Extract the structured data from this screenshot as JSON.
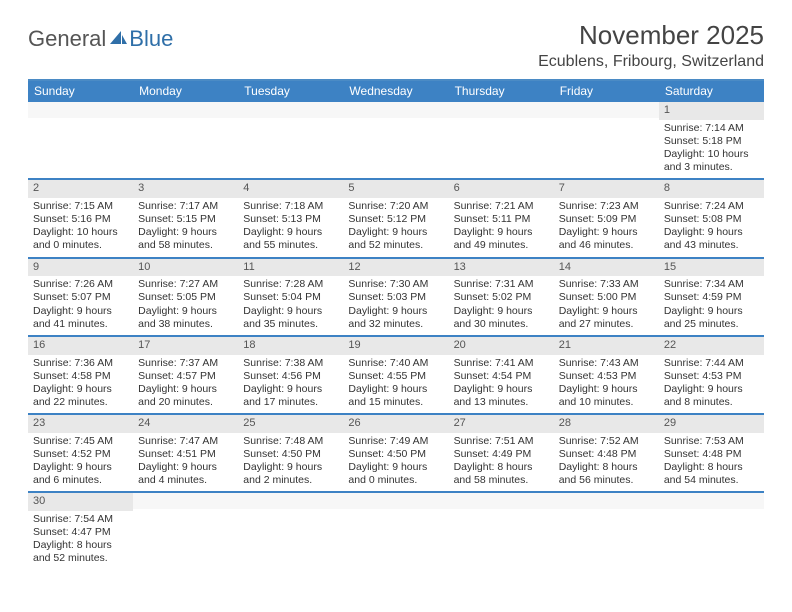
{
  "logo": {
    "text1": "General",
    "text2": "Blue"
  },
  "title": "November 2025",
  "location": "Ecublens, Fribourg, Switzerland",
  "header_bg": "#3d82c4",
  "rule_color": "#3d82c4",
  "daynum_bg": "#e8e8e8",
  "weekdays": [
    "Sunday",
    "Monday",
    "Tuesday",
    "Wednesday",
    "Thursday",
    "Friday",
    "Saturday"
  ],
  "weeks": [
    [
      {
        "n": "",
        "lines": []
      },
      {
        "n": "",
        "lines": []
      },
      {
        "n": "",
        "lines": []
      },
      {
        "n": "",
        "lines": []
      },
      {
        "n": "",
        "lines": []
      },
      {
        "n": "",
        "lines": []
      },
      {
        "n": "1",
        "lines": [
          "Sunrise: 7:14 AM",
          "Sunset: 5:18 PM",
          "Daylight: 10 hours and 3 minutes."
        ]
      }
    ],
    [
      {
        "n": "2",
        "lines": [
          "Sunrise: 7:15 AM",
          "Sunset: 5:16 PM",
          "Daylight: 10 hours and 0 minutes."
        ]
      },
      {
        "n": "3",
        "lines": [
          "Sunrise: 7:17 AM",
          "Sunset: 5:15 PM",
          "Daylight: 9 hours and 58 minutes."
        ]
      },
      {
        "n": "4",
        "lines": [
          "Sunrise: 7:18 AM",
          "Sunset: 5:13 PM",
          "Daylight: 9 hours and 55 minutes."
        ]
      },
      {
        "n": "5",
        "lines": [
          "Sunrise: 7:20 AM",
          "Sunset: 5:12 PM",
          "Daylight: 9 hours and 52 minutes."
        ]
      },
      {
        "n": "6",
        "lines": [
          "Sunrise: 7:21 AM",
          "Sunset: 5:11 PM",
          "Daylight: 9 hours and 49 minutes."
        ]
      },
      {
        "n": "7",
        "lines": [
          "Sunrise: 7:23 AM",
          "Sunset: 5:09 PM",
          "Daylight: 9 hours and 46 minutes."
        ]
      },
      {
        "n": "8",
        "lines": [
          "Sunrise: 7:24 AM",
          "Sunset: 5:08 PM",
          "Daylight: 9 hours and 43 minutes."
        ]
      }
    ],
    [
      {
        "n": "9",
        "lines": [
          "Sunrise: 7:26 AM",
          "Sunset: 5:07 PM",
          "Daylight: 9 hours and 41 minutes."
        ]
      },
      {
        "n": "10",
        "lines": [
          "Sunrise: 7:27 AM",
          "Sunset: 5:05 PM",
          "Daylight: 9 hours and 38 minutes."
        ]
      },
      {
        "n": "11",
        "lines": [
          "Sunrise: 7:28 AM",
          "Sunset: 5:04 PM",
          "Daylight: 9 hours and 35 minutes."
        ]
      },
      {
        "n": "12",
        "lines": [
          "Sunrise: 7:30 AM",
          "Sunset: 5:03 PM",
          "Daylight: 9 hours and 32 minutes."
        ]
      },
      {
        "n": "13",
        "lines": [
          "Sunrise: 7:31 AM",
          "Sunset: 5:02 PM",
          "Daylight: 9 hours and 30 minutes."
        ]
      },
      {
        "n": "14",
        "lines": [
          "Sunrise: 7:33 AM",
          "Sunset: 5:00 PM",
          "Daylight: 9 hours and 27 minutes."
        ]
      },
      {
        "n": "15",
        "lines": [
          "Sunrise: 7:34 AM",
          "Sunset: 4:59 PM",
          "Daylight: 9 hours and 25 minutes."
        ]
      }
    ],
    [
      {
        "n": "16",
        "lines": [
          "Sunrise: 7:36 AM",
          "Sunset: 4:58 PM",
          "Daylight: 9 hours and 22 minutes."
        ]
      },
      {
        "n": "17",
        "lines": [
          "Sunrise: 7:37 AM",
          "Sunset: 4:57 PM",
          "Daylight: 9 hours and 20 minutes."
        ]
      },
      {
        "n": "18",
        "lines": [
          "Sunrise: 7:38 AM",
          "Sunset: 4:56 PM",
          "Daylight: 9 hours and 17 minutes."
        ]
      },
      {
        "n": "19",
        "lines": [
          "Sunrise: 7:40 AM",
          "Sunset: 4:55 PM",
          "Daylight: 9 hours and 15 minutes."
        ]
      },
      {
        "n": "20",
        "lines": [
          "Sunrise: 7:41 AM",
          "Sunset: 4:54 PM",
          "Daylight: 9 hours and 13 minutes."
        ]
      },
      {
        "n": "21",
        "lines": [
          "Sunrise: 7:43 AM",
          "Sunset: 4:53 PM",
          "Daylight: 9 hours and 10 minutes."
        ]
      },
      {
        "n": "22",
        "lines": [
          "Sunrise: 7:44 AM",
          "Sunset: 4:53 PM",
          "Daylight: 9 hours and 8 minutes."
        ]
      }
    ],
    [
      {
        "n": "23",
        "lines": [
          "Sunrise: 7:45 AM",
          "Sunset: 4:52 PM",
          "Daylight: 9 hours and 6 minutes."
        ]
      },
      {
        "n": "24",
        "lines": [
          "Sunrise: 7:47 AM",
          "Sunset: 4:51 PM",
          "Daylight: 9 hours and 4 minutes."
        ]
      },
      {
        "n": "25",
        "lines": [
          "Sunrise: 7:48 AM",
          "Sunset: 4:50 PM",
          "Daylight: 9 hours and 2 minutes."
        ]
      },
      {
        "n": "26",
        "lines": [
          "Sunrise: 7:49 AM",
          "Sunset: 4:50 PM",
          "Daylight: 9 hours and 0 minutes."
        ]
      },
      {
        "n": "27",
        "lines": [
          "Sunrise: 7:51 AM",
          "Sunset: 4:49 PM",
          "Daylight: 8 hours and 58 minutes."
        ]
      },
      {
        "n": "28",
        "lines": [
          "Sunrise: 7:52 AM",
          "Sunset: 4:48 PM",
          "Daylight: 8 hours and 56 minutes."
        ]
      },
      {
        "n": "29",
        "lines": [
          "Sunrise: 7:53 AM",
          "Sunset: 4:48 PM",
          "Daylight: 8 hours and 54 minutes."
        ]
      }
    ],
    [
      {
        "n": "30",
        "lines": [
          "Sunrise: 7:54 AM",
          "Sunset: 4:47 PM",
          "Daylight: 8 hours and 52 minutes."
        ]
      },
      {
        "n": "",
        "lines": []
      },
      {
        "n": "",
        "lines": []
      },
      {
        "n": "",
        "lines": []
      },
      {
        "n": "",
        "lines": []
      },
      {
        "n": "",
        "lines": []
      },
      {
        "n": "",
        "lines": []
      }
    ]
  ]
}
